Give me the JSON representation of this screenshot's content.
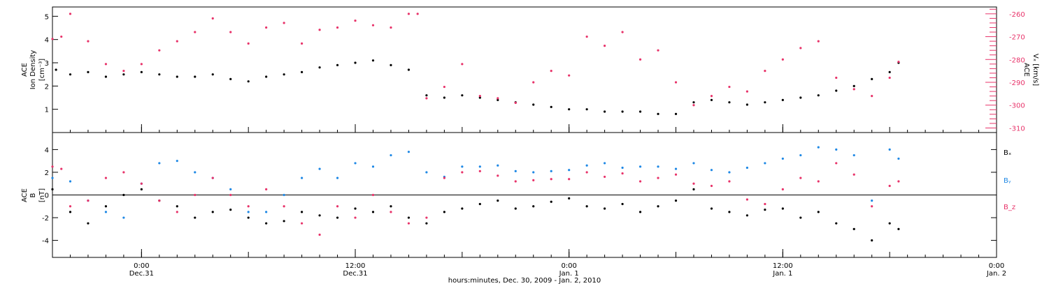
{
  "colors": {
    "black": "#000000",
    "blue": "#1e88e5",
    "pink": "#e8336a"
  },
  "xaxis": {
    "title": "hours:minutes, Dec. 30, 2009 - Jan. 2, 2010",
    "range_hours": [
      -5,
      48
    ],
    "ticks": [
      {
        "hour": 0,
        "time": "0:00",
        "day": "Dec.31"
      },
      {
        "hour": 12,
        "time": "12:00",
        "day": "Dec.31"
      },
      {
        "hour": 24,
        "time": "0:00",
        "day": "Jan. 1"
      },
      {
        "hour": 36,
        "time": "12:00",
        "day": "Jan. 1"
      },
      {
        "hour": 48,
        "time": "0:00",
        "day": "Jan. 2"
      }
    ]
  },
  "chart_data": [
    {
      "type": "scatter",
      "panel": "top",
      "ylabel_left": [
        "ACE",
        "Ion Density",
        "[cm⁻³]"
      ],
      "ylabel_right": [
        "ACE",
        "Vₓ [km/s]"
      ],
      "ylim_left": [
        0,
        5.4
      ],
      "yticks_left": [
        "1",
        "2",
        "3",
        "4",
        "5"
      ],
      "ylim_right": [
        -312,
        -257
      ],
      "yticks_right": [
        "-260",
        "-270",
        "-280",
        "-290",
        "-300",
        "-310"
      ],
      "series": [
        {
          "color": "#000000",
          "axis": "left",
          "x": [
            -4.8,
            -4,
            -3,
            -2,
            -1,
            0,
            1,
            2,
            3,
            4,
            5,
            6,
            7,
            8,
            9,
            10,
            11,
            12,
            13,
            14,
            15,
            16,
            17,
            18,
            19,
            20,
            21,
            22,
            23,
            24,
            25,
            26,
            27,
            28,
            29,
            30,
            31,
            32,
            33,
            34,
            35,
            36,
            37,
            38,
            39,
            40,
            41,
            42,
            42.5
          ],
          "y": [
            2.7,
            2.5,
            2.6,
            2.4,
            2.5,
            2.6,
            2.5,
            2.4,
            2.4,
            2.5,
            2.3,
            2.2,
            2.4,
            2.5,
            2.6,
            2.8,
            2.9,
            3.0,
            3.1,
            2.9,
            2.7,
            1.6,
            1.5,
            1.6,
            1.5,
            1.4,
            1.3,
            1.2,
            1.1,
            1.0,
            1.0,
            0.9,
            0.9,
            0.9,
            0.8,
            0.8,
            1.3,
            1.4,
            1.3,
            1.2,
            1.3,
            1.4,
            1.5,
            1.6,
            1.8,
            2.0,
            2.3,
            2.6,
            3.0
          ]
        },
        {
          "color": "#e8336a",
          "axis": "right",
          "x": [
            -5,
            -4.5,
            -4,
            -3,
            -2,
            -1,
            0,
            1,
            2,
            3,
            4,
            5,
            6,
            7,
            8,
            9,
            10,
            11,
            12,
            13,
            14,
            15,
            15.5,
            16,
            17,
            18,
            19,
            20,
            21,
            22,
            23,
            24,
            25,
            26,
            27,
            28,
            29,
            30,
            31,
            32,
            33,
            34,
            35,
            36,
            37,
            38,
            39,
            40,
            41,
            42,
            42.5
          ],
          "y": [
            -271,
            -270,
            -260,
            -272,
            -282,
            -285,
            -282,
            -276,
            -272,
            -268,
            -262,
            -268,
            -273,
            -266,
            -264,
            -273,
            -267,
            -266,
            -263,
            -265,
            -266,
            -260,
            -260,
            -297,
            -292,
            -282,
            -296,
            -297,
            -299,
            -290,
            -285,
            -287,
            -270,
            -274,
            -268,
            -280,
            -276,
            -290,
            -300,
            -296,
            -292,
            -294,
            -285,
            -280,
            -275,
            -272,
            -288,
            -293,
            -296,
            -288,
            -281
          ]
        }
      ]
    },
    {
      "type": "scatter",
      "panel": "bottom",
      "ylabel_left": [
        "ACE",
        "B",
        "[nT]"
      ],
      "ylim": [
        -5.5,
        5.5
      ],
      "yticks": [
        "4",
        "2",
        "0",
        "-2",
        "-4"
      ],
      "legend": [
        "Bₓ",
        "Bᵧ",
        "B_z"
      ],
      "series": [
        {
          "name": "Bₓ",
          "color": "#000000",
          "x": [
            -5,
            -4,
            -3,
            -2,
            -1,
            0,
            1,
            2,
            3,
            4,
            5,
            6,
            7,
            8,
            9,
            10,
            11,
            12,
            13,
            14,
            15,
            16,
            17,
            18,
            19,
            20,
            21,
            22,
            23,
            24,
            25,
            26,
            27,
            28,
            29,
            30,
            31,
            32,
            33,
            34,
            35,
            36,
            37,
            38,
            39,
            40,
            41,
            42,
            42.5
          ],
          "y": [
            0.5,
            -1.5,
            -2.5,
            -1,
            0,
            0.5,
            -0.5,
            -1,
            -2,
            -1.5,
            -1.3,
            -2,
            -2.5,
            -2.3,
            -1.5,
            -1.8,
            -2,
            -1.2,
            -1.5,
            -1,
            -2,
            -2.5,
            -1.5,
            -1.2,
            -0.8,
            -0.5,
            -1.2,
            -1,
            -0.6,
            -0.3,
            -1,
            -1.2,
            -0.8,
            -1.5,
            -1,
            -0.5,
            0.5,
            -1.2,
            -1.5,
            -1.8,
            -1.3,
            -1.2,
            -2,
            -1.5,
            -2.5,
            -3,
            -4,
            -2.5,
            -3
          ]
        },
        {
          "name": "Bᵧ",
          "color": "#1e88e5",
          "x": [
            -5,
            -4,
            -3,
            -2,
            -1,
            0,
            1,
            2,
            3,
            4,
            5,
            6,
            7,
            8,
            9,
            10,
            11,
            12,
            13,
            14,
            15,
            16,
            17,
            18,
            19,
            20,
            21,
            22,
            23,
            24,
            25,
            26,
            27,
            28,
            29,
            30,
            31,
            32,
            33,
            34,
            35,
            36,
            37,
            38,
            39,
            40,
            41,
            42,
            42.5
          ],
          "y": [
            1.5,
            1.2,
            -0.5,
            -1.5,
            -2,
            1,
            2.8,
            3,
            2,
            1.5,
            0.5,
            -1.5,
            -1.5,
            0,
            1.5,
            2.3,
            1.5,
            2.8,
            2.5,
            3.5,
            3.8,
            2,
            1.6,
            2.5,
            2.5,
            2.6,
            2.1,
            2.0,
            2.1,
            2.2,
            2.6,
            2.8,
            2.4,
            2.5,
            2.5,
            2.3,
            2.8,
            2.2,
            2.0,
            2.4,
            2.8,
            3.2,
            3.5,
            4.2,
            4.0,
            3.5,
            -0.5,
            4.0,
            3.2
          ]
        },
        {
          "name": "B_z",
          "color": "#e8336a",
          "x": [
            -5,
            -4.5,
            -4,
            -3,
            -2,
            -1,
            0,
            1,
            2,
            3,
            4,
            5,
            6,
            7,
            8,
            9,
            10,
            11,
            12,
            13,
            14,
            15,
            16,
            17,
            18,
            19,
            20,
            21,
            22,
            23,
            24,
            25,
            26,
            27,
            28,
            29,
            30,
            31,
            32,
            33,
            34,
            35,
            36,
            37,
            38,
            39,
            40,
            41,
            42,
            42.5
          ],
          "y": [
            2.5,
            2.3,
            -1,
            -0.5,
            1.5,
            2,
            1,
            -0.5,
            -1.5,
            0,
            1.5,
            0,
            -1,
            0.5,
            -1,
            -2.5,
            -3.5,
            -1,
            -2,
            0,
            -1.5,
            -2.5,
            -2,
            1.5,
            2.0,
            2.1,
            1.7,
            1.2,
            1.3,
            1.4,
            1.4,
            2.0,
            1.6,
            1.9,
            1.2,
            1.5,
            1.8,
            1.0,
            0.8,
            1.2,
            -0.4,
            -0.8,
            0.5,
            1.5,
            1.2,
            2.8,
            1.8,
            -1,
            0.8,
            1.2
          ]
        }
      ]
    }
  ]
}
